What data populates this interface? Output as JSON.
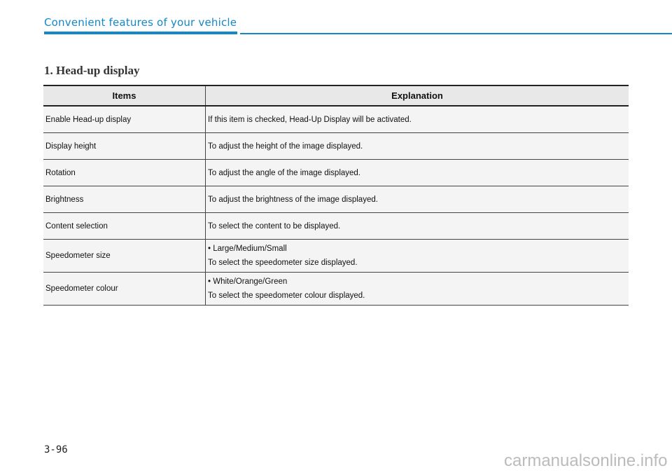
{
  "header": {
    "title": "Convenient features of your vehicle",
    "accent_color": "#1487c9"
  },
  "section_title": "1. Head-up display",
  "table": {
    "columns": [
      "Items",
      "Explanation"
    ],
    "rows": [
      {
        "item": "Enable Head-up display",
        "lines": [
          "If this item is checked, Head-Up Display will be activated."
        ]
      },
      {
        "item": "Display height",
        "lines": [
          "To adjust the height of the image displayed."
        ]
      },
      {
        "item": "Rotation",
        "lines": [
          "To adjust the angle of the image displayed."
        ]
      },
      {
        "item": "Brightness",
        "lines": [
          "To adjust the brightness of the image displayed."
        ]
      },
      {
        "item": "Content selection",
        "lines": [
          "To select the content to be displayed."
        ]
      },
      {
        "item": "Speedometer size",
        "lines": [
          "• Large/Medium/Small",
          "To select the speedometer size displayed."
        ]
      },
      {
        "item": "Speedometer colour",
        "lines": [
          "• White/Orange/Green",
          "To select the speedometer colour displayed."
        ]
      }
    ]
  },
  "page_number": "3-96",
  "watermark": "carmanualsonline.info"
}
